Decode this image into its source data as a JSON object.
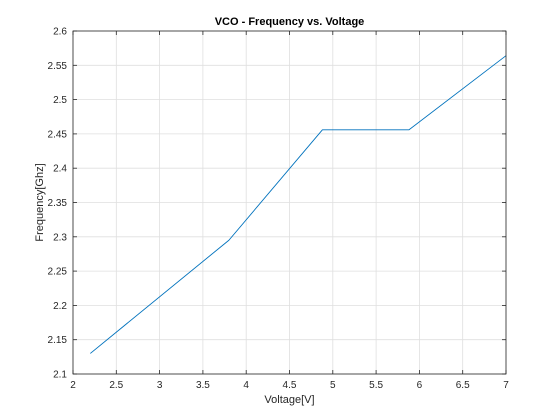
{
  "chart_data": {
    "type": "line",
    "title": "VCO - Frequency vs. Voltage",
    "xlabel": "Voltage[V]",
    "ylabel": "Frequency[Ghz]",
    "xlim": [
      2,
      7
    ],
    "ylim": [
      2.1,
      2.6
    ],
    "x_ticks": [
      2,
      2.5,
      3,
      3.5,
      4,
      4.5,
      5,
      5.5,
      6,
      6.5,
      7
    ],
    "x_tick_labels": [
      "2",
      "2.5",
      "3",
      "3.5",
      "4",
      "4.5",
      "5",
      "5.5",
      "6",
      "6.5",
      "7"
    ],
    "y_ticks": [
      2.1,
      2.15,
      2.2,
      2.25,
      2.3,
      2.35,
      2.4,
      2.45,
      2.5,
      2.55,
      2.6
    ],
    "y_tick_labels": [
      "2.1",
      "2.15",
      "2.2",
      "2.25",
      "2.3",
      "2.35",
      "2.4",
      "2.45",
      "2.5",
      "2.55",
      "2.6"
    ],
    "grid": true,
    "legend": "none",
    "series": [
      {
        "color": "#0072BD",
        "x": [
          2.2,
          3.8,
          4.88,
          5.88,
          7.0
        ],
        "y": [
          2.13,
          2.295,
          2.456,
          2.456,
          2.564
        ]
      }
    ]
  }
}
